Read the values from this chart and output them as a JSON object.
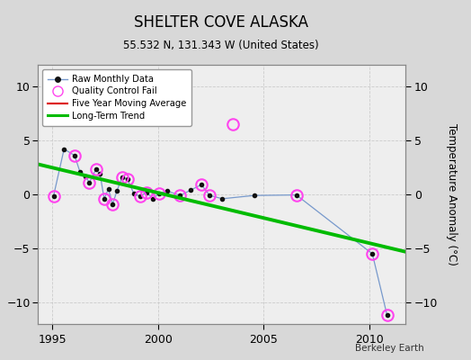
{
  "title": "SHELTER COVE ALASKA",
  "subtitle": "55.532 N, 131.343 W (United States)",
  "ylabel": "Temperature Anomaly (°C)",
  "xlabel_note": "Berkeley Earth",
  "xlim": [
    1994.3,
    2011.7
  ],
  "ylim": [
    -12,
    12
  ],
  "yticks": [
    -10,
    -5,
    0,
    5,
    10
  ],
  "xticks": [
    1995,
    2000,
    2005,
    2010
  ],
  "bg_color": "#d8d8d8",
  "plot_bg_color": "#eeeeee",
  "raw_data_x": [
    1995.05,
    1995.55,
    1996.05,
    1996.3,
    1996.55,
    1996.75,
    1997.05,
    1997.25,
    1997.45,
    1997.65,
    1997.85,
    1998.05,
    1998.3,
    1998.55,
    1998.85,
    1999.15,
    1999.45,
    1999.75,
    2000.05,
    2000.45,
    2001.05,
    2001.55,
    2002.05,
    2002.45,
    2003.05,
    2004.55,
    2006.55,
    2010.15,
    2010.85
  ],
  "raw_data_y": [
    -0.15,
    4.2,
    3.6,
    2.1,
    1.7,
    1.1,
    2.3,
    1.9,
    -0.4,
    0.5,
    -0.9,
    0.3,
    1.6,
    1.4,
    0.1,
    -0.2,
    0.2,
    -0.4,
    0.1,
    0.3,
    -0.1,
    0.4,
    0.9,
    -0.1,
    -0.4,
    -0.1,
    -0.05,
    -5.5,
    -11.2
  ],
  "qc_fail_x": [
    1995.05,
    1996.05,
    1996.75,
    1997.05,
    1997.45,
    1997.85,
    1998.3,
    1998.55,
    1999.15,
    1999.45,
    2000.05,
    2001.05,
    2002.05,
    2002.45,
    2003.55,
    2006.55,
    2010.15,
    2010.85
  ],
  "qc_fail_y": [
    -0.15,
    3.6,
    1.1,
    2.3,
    -0.4,
    -0.9,
    1.6,
    1.4,
    -0.2,
    0.2,
    0.1,
    -0.1,
    0.9,
    -0.1,
    6.5,
    -0.05,
    -5.5,
    -11.2
  ],
  "trend_x": [
    1994.3,
    2011.7
  ],
  "trend_y": [
    2.8,
    -5.3
  ],
  "raw_line_color": "#7799cc",
  "raw_marker_color": "#111111",
  "qc_color": "#ff44ee",
  "trend_color": "#00bb00",
  "mavg_color": "#dd0000",
  "legend_bg": "#ffffff",
  "grid_color": "#cccccc"
}
